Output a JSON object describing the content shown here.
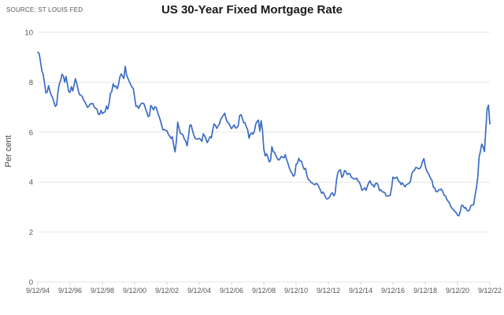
{
  "chart_data": {
    "type": "line",
    "title": "US 30-Year Fixed Mortgage Rate",
    "source": "SOURCE: ST LOUIS FED",
    "ylabel": "Per cent",
    "ylim": [
      0,
      10
    ],
    "y_ticks": [
      0,
      2,
      4,
      6,
      8,
      10
    ],
    "x_tick_labels": [
      "9/12/94",
      "9/12/96",
      "9/12/98",
      "9/12/00",
      "9/12/02",
      "9/12/04",
      "9/12/06",
      "9/12/08",
      "9/12/10",
      "9/12/12",
      "9/12/14",
      "9/12/16",
      "9/12/18",
      "9/12/20",
      "9/12/22"
    ],
    "label_every_n_points": 24,
    "grid": true,
    "legend_position": "none",
    "line_color": "#3b6cc4",
    "grid_color": "#e6e6e6",
    "tick_color": "#d9d9d9",
    "axis_text_color": "#555555",
    "series": [
      {
        "name": "US 30-Year Fixed Mortgage Rate",
        "start_label": "9/12/94",
        "end_label": "9/12/22",
        "frequency": "monthly",
        "values": [
          9.2,
          9.15,
          8.83,
          8.46,
          8.32,
          7.96,
          7.57,
          7.61,
          7.86,
          7.64,
          7.48,
          7.38,
          7.2,
          7.03,
          7.08,
          7.62,
          7.93,
          8.07,
          8.32,
          8.25,
          8.0,
          8.23,
          7.92,
          7.62,
          7.6,
          7.82,
          7.65,
          7.9,
          8.14,
          7.94,
          7.69,
          7.5,
          7.48,
          7.43,
          7.29,
          7.21,
          7.1,
          6.99,
          7.04,
          7.13,
          7.14,
          7.14,
          7.0,
          6.95,
          6.92,
          6.72,
          6.71,
          6.87,
          6.74,
          6.79,
          6.81,
          7.04,
          6.92,
          7.15,
          7.55,
          7.63,
          7.94,
          7.82,
          7.85,
          7.74,
          7.91,
          8.21,
          8.33,
          8.24,
          8.15,
          8.64,
          8.29,
          8.15,
          8.03,
          7.91,
          7.8,
          7.75,
          7.38,
          7.03,
          7.05,
          6.95,
          7.08,
          7.15,
          7.16,
          7.13,
          6.95,
          6.82,
          6.62,
          6.66,
          7.07,
          7.0,
          6.89,
          7.01,
          6.99,
          6.81,
          6.65,
          6.49,
          6.29,
          6.09,
          6.11,
          6.07,
          6.05,
          5.92,
          5.84,
          5.75,
          5.81,
          5.48,
          5.21,
          5.63,
          6.4,
          6.15,
          5.95,
          5.93,
          5.88,
          5.71,
          5.64,
          5.45,
          5.83,
          6.27,
          6.29,
          6.06,
          5.87,
          5.75,
          5.72,
          5.73,
          5.75,
          5.71,
          5.63,
          5.93,
          5.86,
          5.72,
          5.58,
          5.7,
          5.82,
          5.77,
          6.07,
          6.33,
          6.27,
          6.15,
          6.25,
          6.32,
          6.51,
          6.6,
          6.68,
          6.76,
          6.52,
          6.4,
          6.36,
          6.24,
          6.14,
          6.22,
          6.29,
          6.16,
          6.18,
          6.26,
          6.66,
          6.7,
          6.57,
          6.38,
          6.38,
          6.21,
          6.1,
          5.76,
          5.92,
          5.97,
          5.92,
          6.04,
          6.32,
          6.43,
          6.48,
          6.04,
          6.46,
          6.09,
          5.33,
          5.05,
          5.13,
          5.0,
          4.81,
          4.86,
          5.42,
          5.22,
          5.19,
          5.06,
          4.95,
          4.88,
          4.93,
          5.03,
          4.99,
          4.97,
          5.1,
          4.89,
          4.74,
          4.56,
          4.43,
          4.35,
          4.23,
          4.3,
          4.71,
          4.76,
          4.95,
          4.84,
          4.84,
          4.64,
          4.51,
          4.55,
          4.27,
          4.11,
          4.07,
          3.99,
          3.96,
          3.92,
          3.89,
          3.95,
          3.91,
          3.8,
          3.68,
          3.55,
          3.6,
          3.5,
          3.38,
          3.32,
          3.35,
          3.41,
          3.53,
          3.57,
          3.45,
          3.54,
          4.07,
          4.37,
          4.46,
          4.49,
          4.19,
          4.26,
          4.46,
          4.43,
          4.3,
          4.34,
          4.34,
          4.19,
          4.16,
          4.13,
          4.12,
          4.16,
          4.04,
          4.0,
          3.86,
          3.67,
          3.71,
          3.77,
          3.67,
          3.84,
          3.98,
          4.05,
          3.91,
          3.89,
          3.8,
          3.94,
          3.96,
          3.87,
          3.66,
          3.69,
          3.61,
          3.6,
          3.57,
          3.44,
          3.44,
          3.46,
          3.47,
          3.77,
          4.2,
          4.15,
          4.17,
          4.2,
          4.05,
          4.01,
          3.9,
          3.97,
          3.88,
          3.81,
          3.9,
          3.92,
          3.95,
          4.03,
          4.33,
          4.44,
          4.47,
          4.59,
          4.57,
          4.53,
          4.55,
          4.63,
          4.83,
          4.94,
          4.64,
          4.46,
          4.37,
          4.27,
          4.14,
          4.07,
          3.8,
          3.77,
          3.62,
          3.61,
          3.69,
          3.7,
          3.72,
          3.62,
          3.47,
          3.45,
          3.31,
          3.23,
          3.16,
          3.02,
          2.94,
          2.89,
          2.83,
          2.77,
          2.67,
          2.65,
          2.81,
          3.08,
          3.06,
          2.96,
          2.98,
          2.87,
          2.84,
          2.9,
          3.07,
          3.07,
          3.1,
          3.45,
          3.76,
          4.17,
          4.98,
          5.23,
          5.52,
          5.41,
          5.22,
          6.11,
          6.94,
          7.08,
          6.33
        ]
      }
    ]
  }
}
